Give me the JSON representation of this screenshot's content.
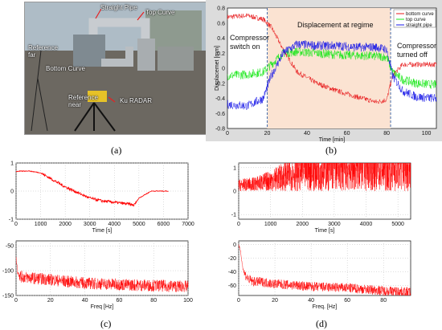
{
  "panel_a": {
    "labels": {
      "straight_pipe": "Straight Pipe",
      "top_curve": "Top Curve",
      "reference_far": "Reference far",
      "bottom_curve": "Bottom Curve",
      "reference_near": "Reference near",
      "radar": "Ku RADAR"
    },
    "caption": "(a)"
  },
  "captions": {
    "b": "(b)",
    "c": "(c)",
    "d": "(d)"
  },
  "annotations_b": {
    "compressor_on": [
      "Compressor",
      "switch on"
    ],
    "regime": "Displacement at regime",
    "compressor_off": [
      "Compressor",
      "turned off"
    ]
  },
  "colors": {
    "bottom_curve": "#e8181a",
    "top_curve": "#18e818",
    "straight_pipe": "#1818e8",
    "signal_red": "#ff0000",
    "bg_shade": "#fbe3d2",
    "panel_b_bg": "#dcdcdc"
  },
  "chart_data": [
    {
      "id": "b",
      "type": "line",
      "title": "",
      "xlabel": "Time [min]",
      "ylabel": "Displacemet [mm]",
      "xlim": [
        0,
        105
      ],
      "ylim": [
        -0.8,
        0.8
      ],
      "xticks": [
        0,
        20,
        40,
        60,
        80,
        100
      ],
      "yticks": [
        0.8,
        0.6,
        0.4,
        0.2,
        0,
        -0.2,
        -0.4,
        -0.6,
        -0.8
      ],
      "ytick_labels": [
        "0.8",
        "0.6",
        "0.4",
        "0.2",
        "0",
        "-0.2",
        "-0.4",
        "-0.6",
        "-0.8"
      ],
      "regions": [
        [
          20,
          82
        ]
      ],
      "vlines": [
        20,
        82
      ],
      "legend_position": "top-right",
      "series": [
        {
          "name": "bottom curve",
          "x": [
            0,
            10,
            18,
            22,
            28,
            35,
            45,
            55,
            65,
            75,
            80,
            83,
            88,
            95,
            105
          ],
          "values": [
            0.68,
            0.7,
            0.65,
            0.55,
            0.25,
            -0.05,
            -0.2,
            -0.3,
            -0.38,
            -0.45,
            -0.42,
            -0.1,
            0.05,
            0.05,
            0.05
          ]
        },
        {
          "name": "top curve",
          "x": [
            0,
            10,
            18,
            22,
            28,
            35,
            45,
            55,
            65,
            75,
            80,
            83,
            88,
            95,
            105
          ],
          "values": [
            -0.1,
            -0.08,
            -0.05,
            0.05,
            0.2,
            0.22,
            0.2,
            0.18,
            0.17,
            0.16,
            0.15,
            -0.05,
            -0.15,
            -0.2,
            -0.22
          ]
        },
        {
          "name": "straight pipe",
          "x": [
            0,
            10,
            18,
            22,
            28,
            35,
            45,
            55,
            65,
            75,
            80,
            83,
            88,
            95,
            105
          ],
          "values": [
            -0.48,
            -0.5,
            -0.4,
            -0.1,
            0.2,
            0.32,
            0.3,
            0.3,
            0.28,
            0.28,
            0.25,
            -0.1,
            -0.3,
            -0.38,
            -0.4
          ]
        }
      ]
    },
    {
      "id": "c_top",
      "type": "line",
      "title": "",
      "xlabel": "Time [s]",
      "ylabel": "",
      "xlim": [
        0,
        7000
      ],
      "ylim": [
        -1,
        1
      ],
      "xticks": [
        0,
        1000,
        2000,
        3000,
        4000,
        5000,
        6000,
        7000
      ],
      "yticks": [
        1,
        0,
        -1
      ],
      "ytick_labels": [
        "1",
        "0",
        "-1"
      ],
      "grid": true,
      "series": [
        {
          "x": [
            0,
            500,
            1000,
            1500,
            2000,
            2500,
            3000,
            3500,
            4000,
            4500,
            4800,
            5000,
            5500,
            6000,
            6200
          ],
          "values": [
            0.7,
            0.72,
            0.65,
            0.4,
            0.15,
            -0.05,
            -0.25,
            -0.35,
            -0.4,
            -0.45,
            -0.5,
            -0.25,
            0.0,
            0.0,
            0.0
          ]
        }
      ]
    },
    {
      "id": "c_bottom",
      "type": "line",
      "title": "",
      "xlabel": "Freq [Hz]",
      "ylabel": "",
      "xlim": [
        0,
        100
      ],
      "ylim": [
        -150,
        -40
      ],
      "xticks": [
        0,
        20,
        40,
        60,
        80,
        100
      ],
      "yticks": [
        -50,
        -100,
        -150
      ],
      "ytick_labels": [
        "-50",
        "-100",
        "-150"
      ],
      "grid": true,
      "series": [
        {
          "x": [
            0,
            1,
            3,
            10,
            20,
            30,
            40,
            60,
            80,
            100
          ],
          "values": [
            -75,
            -105,
            -112,
            -115,
            -118,
            -122,
            -125,
            -128,
            -130,
            -132
          ]
        }
      ]
    },
    {
      "id": "d_top",
      "type": "line",
      "title": "",
      "xlabel": "Time [s]",
      "ylabel": "",
      "xlim": [
        0,
        5400
      ],
      "ylim": [
        -1.2,
        1.2
      ],
      "xticks": [
        0,
        1000,
        2000,
        3000,
        4000,
        5000
      ],
      "yticks": [
        1,
        0,
        -1
      ],
      "ytick_labels": [
        "1",
        "0",
        "-1"
      ],
      "grid": true,
      "series": [
        {
          "x": [
            0,
            500,
            1000,
            1500,
            2000,
            2500,
            3000,
            4000,
            5000,
            5400
          ],
          "values": [
            0.25,
            0.3,
            0.45,
            0.65,
            0.9,
            1.0,
            1.0,
            1.0,
            1.0,
            1.0
          ]
        }
      ]
    },
    {
      "id": "d_bottom",
      "type": "line",
      "title": "",
      "xlabel": "Freq. [Hz]",
      "ylabel": "",
      "xlim": [
        0,
        95
      ],
      "ylim": [
        -75,
        5
      ],
      "xticks": [
        0,
        20,
        40,
        60,
        80
      ],
      "yticks": [
        0,
        -20,
        -40,
        -60
      ],
      "ytick_labels": [
        "0",
        "-20",
        "-40",
        "-60"
      ],
      "grid": true,
      "series": [
        {
          "x": [
            0,
            1,
            2,
            3,
            5,
            8,
            12,
            20,
            40,
            60,
            80,
            95
          ],
          "values": [
            0,
            -10,
            -30,
            -42,
            -50,
            -55,
            -55,
            -58,
            -62,
            -64,
            -68,
            -70
          ]
        }
      ]
    }
  ]
}
